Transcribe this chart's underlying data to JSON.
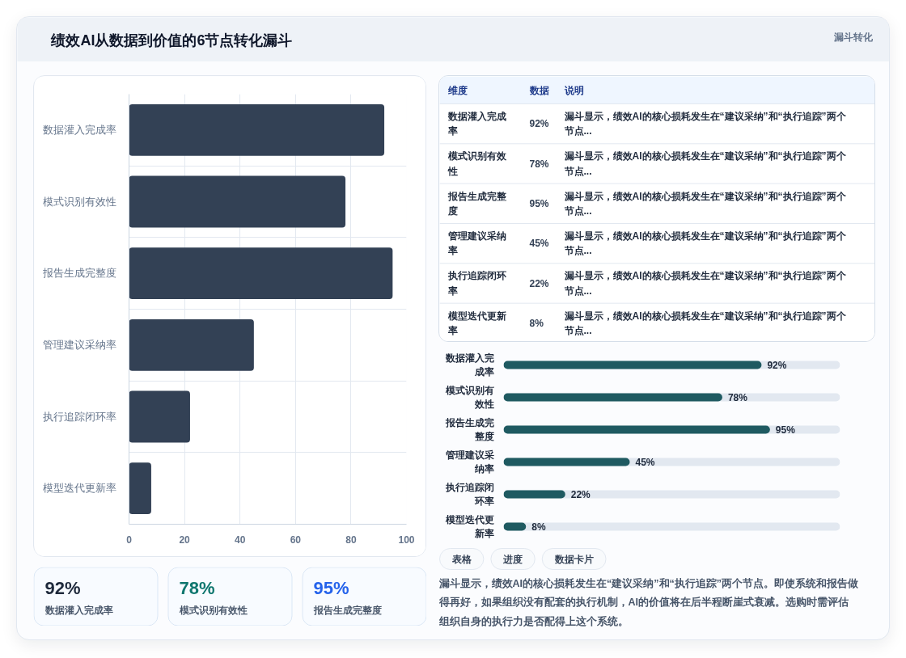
{
  "chart_data": [
    {
      "type": "bar",
      "title": "绩效AI从数据到价值的6节点转化漏斗",
      "orientation": "horizontal",
      "categories": [
        "数据灌入完成率",
        "模式识别有效性",
        "报告生成完整度",
        "管理建议采纳率",
        "执行追踪闭环率",
        "模型迭代更新率"
      ],
      "values": [
        92,
        78,
        95,
        45,
        22,
        8
      ],
      "color": "#334155",
      "xlim": [
        0,
        100
      ],
      "xticks": [
        0,
        20,
        40,
        60,
        80,
        100
      ],
      "grid": true
    },
    {
      "type": "other",
      "categories": [
        "数据灌入完成率",
        "模式识别有效性",
        "报告生成完整度"
      ],
      "value_labels": [
        "92%",
        "78%",
        "95%"
      ]
    },
    {
      "type": "other",
      "title": "漏斗转化",
      "ylabel": "维度",
      "xlabel": "数据",
      "y2label": "说明",
      "categories": [
        "数据灌入完成率",
        "模式识别有效性",
        "报告生成完整度",
        "管理建议采纳率",
        "执行追踪闭环率",
        "模型迭代更新率"
      ],
      "value_labels": [
        "92%",
        "78%",
        "95%",
        "45%",
        "22%",
        "8%"
      ],
      "annotations": [
        "漏斗显示，绩效AI的核心损耗发生在“建议采纳”和“执行追踪”两个节点...",
        "漏斗显示，绩效AI的核心损耗发生在“建议采纳”和“执行追踪”两个节点...",
        "漏斗显示，绩效AI的核心损耗发生在“建议采纳”和“执行追踪”两个节点...",
        "漏斗显示，绩效AI的核心损耗发生在“建议采纳”和“执行追踪”两个节点...",
        "漏斗显示，绩效AI的核心损耗发生在“建议采纳”和“执行追踪”两个节点...",
        "漏斗显示，绩效AI的核心损耗发生在“建议采纳”和“执行追踪”两个节点..."
      ]
    },
    {
      "type": "bar",
      "orientation": "horizontal",
      "categories": [
        "数据灌入完成率",
        "模式识别有效性",
        "报告生成完整度",
        "管理建议采纳率",
        "执行追踪闭环率",
        "模型迭代更新率"
      ],
      "values": [
        92,
        78,
        95,
        45,
        22,
        8
      ],
      "value_labels": [
        "92%",
        "78%",
        "95%",
        "45%",
        "22%",
        "8%"
      ],
      "color": "#1f5a61",
      "xlim": [
        0,
        120
      ],
      "tick_labels": "y"
    },
    {
      "type": "other",
      "categories": [
        "表格",
        "进度",
        "数据卡片"
      ],
      "annotations": [
        "漏斗显示，绩效AI的核心损耗发生在“建议采纳”和“执行追踪”两个节点。即使系统和报告做得再好，如果组织没有配套的执行机制，AI的价值将在后半程断崖式衰减。选购时需评估组织自身的执行力是否配得上这个系统。"
      ]
    }
  ]
}
